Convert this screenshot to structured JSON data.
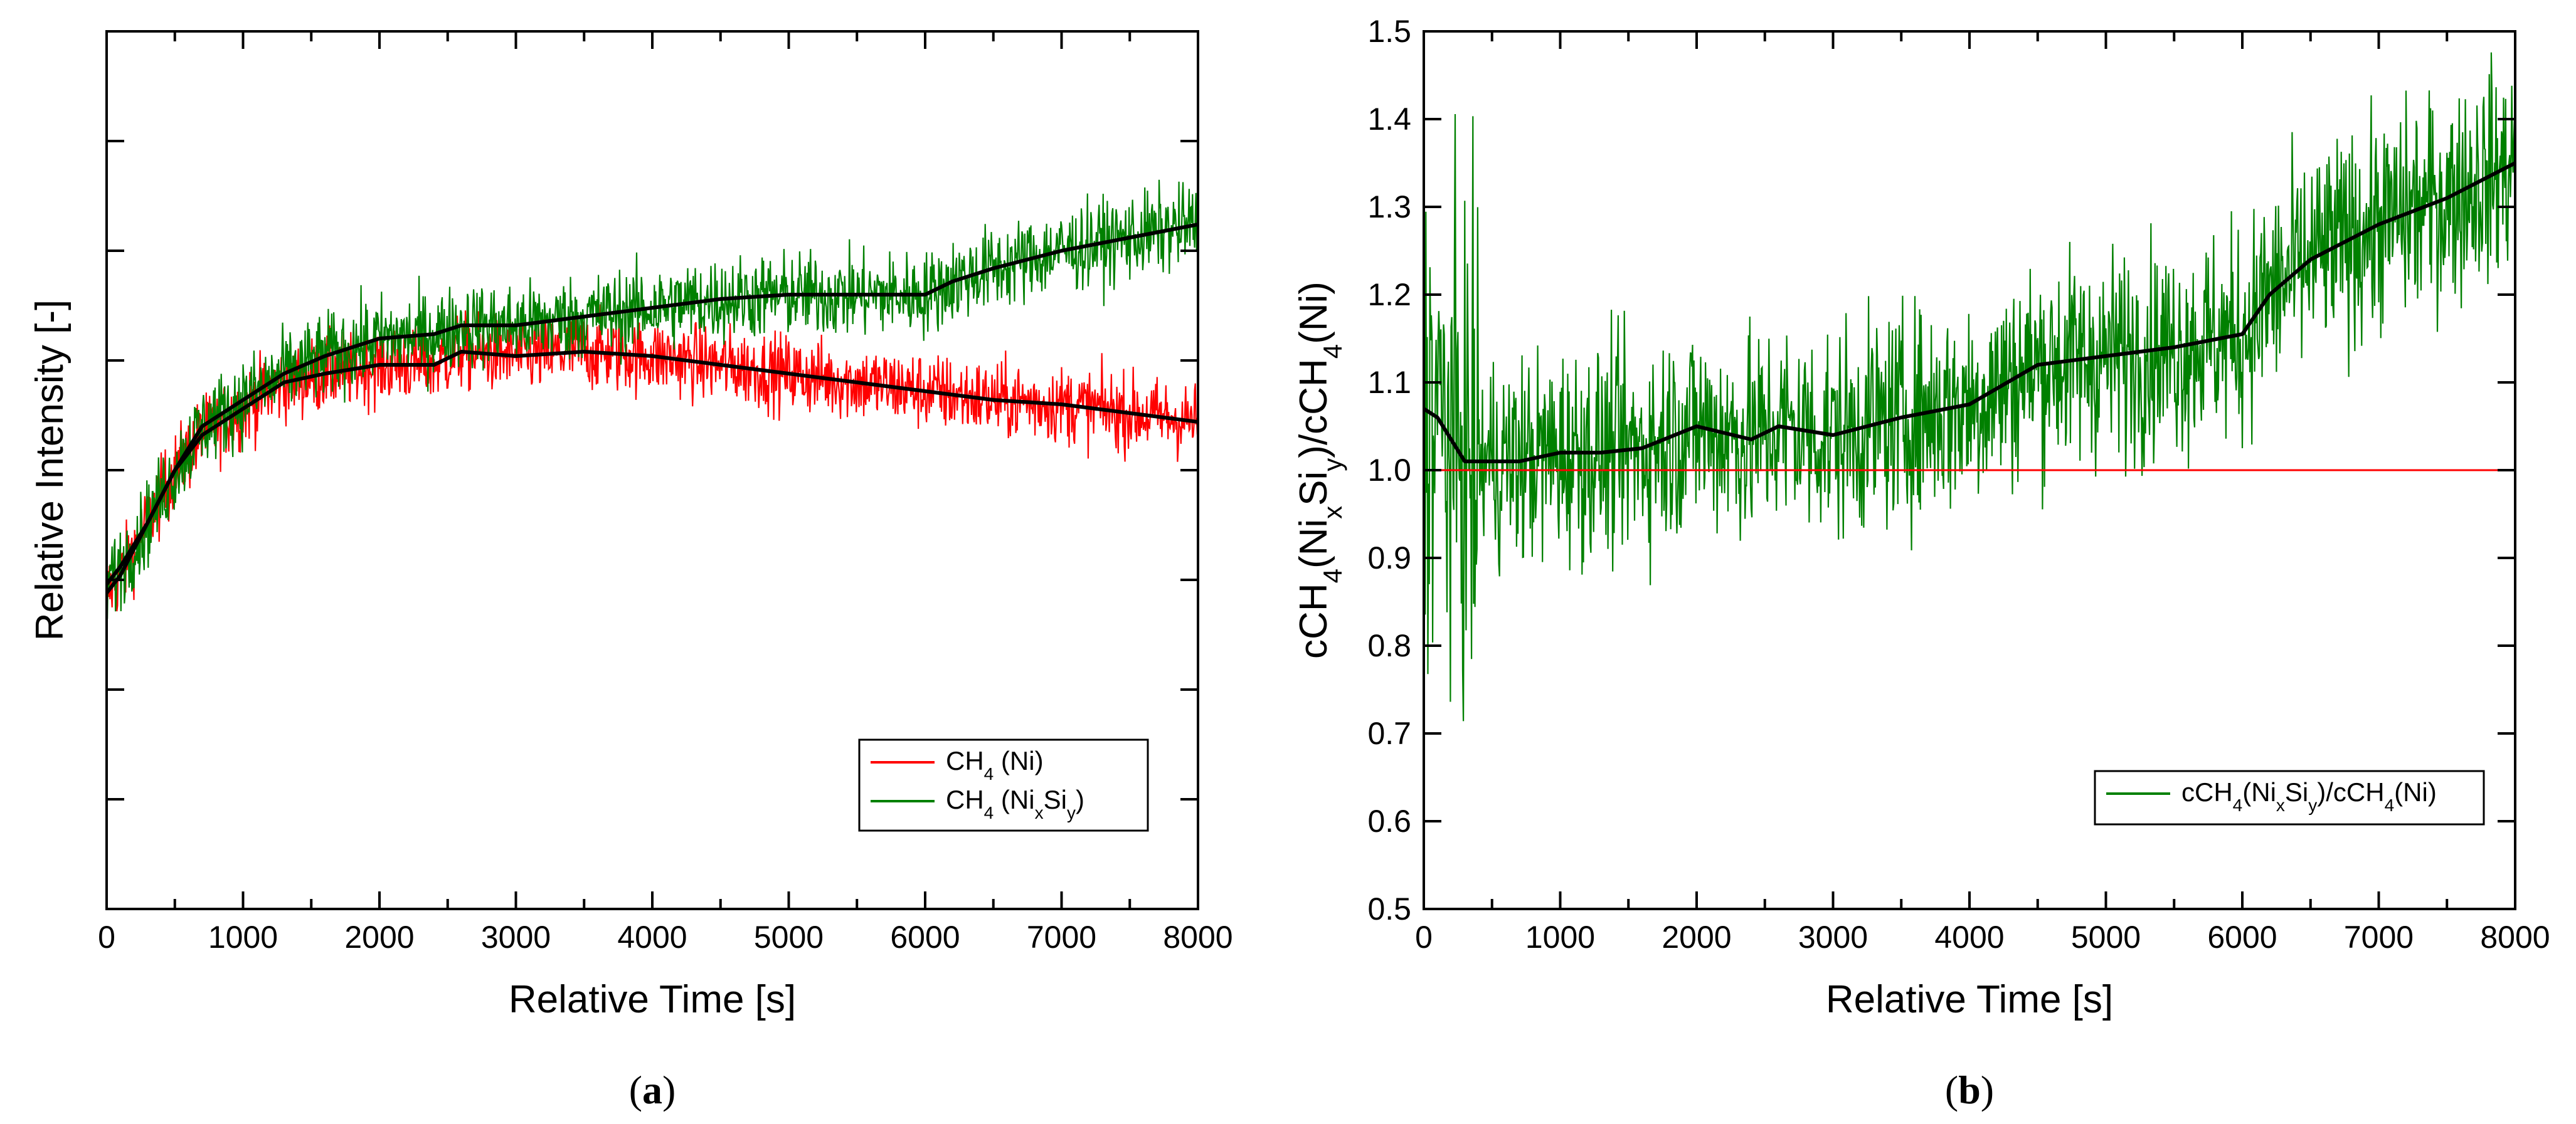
{
  "chart_data": [
    {
      "type": "line",
      "panel_label": "a",
      "xlabel": "Relative Time [s]",
      "ylabel": "Relative Intensity [-]",
      "xlim": [
        0,
        8000
      ],
      "ylim": [
        0,
        1
      ],
      "x_ticks": [
        "0",
        "1000",
        "2000",
        "3000",
        "4000",
        "5000",
        "6000",
        "7000",
        "8000"
      ],
      "y_tick_count": 8,
      "y_tick_labels_shown": false,
      "grid": false,
      "legend_position": "bottom-right",
      "series": [
        {
          "name": "CH4 (Ni)",
          "legend_parts": [
            "CH",
            "4",
            " (Ni)"
          ],
          "color": "#ff0000",
          "noise": 0.022,
          "x": [
            0,
            100,
            300,
            500,
            700,
            1000,
            1300,
            1600,
            2000,
            2400,
            2600,
            3000,
            3500,
            4000,
            4500,
            5000,
            5500,
            6000,
            6500,
            7000,
            7500,
            8000
          ],
          "y": [
            0.36,
            0.38,
            0.44,
            0.5,
            0.54,
            0.57,
            0.6,
            0.61,
            0.62,
            0.62,
            0.635,
            0.63,
            0.635,
            0.63,
            0.62,
            0.61,
            0.6,
            0.59,
            0.58,
            0.575,
            0.565,
            0.555
          ]
        },
        {
          "name": "CH4 (NixSiy)",
          "legend_parts": [
            "CH",
            "4",
            " (Ni",
            "x",
            "Si",
            "y",
            ")"
          ],
          "color": "#008000",
          "noise": 0.024,
          "x": [
            0,
            100,
            300,
            500,
            700,
            1000,
            1300,
            1600,
            2000,
            2400,
            2600,
            3000,
            3500,
            4000,
            4500,
            5000,
            5500,
            6000,
            6200,
            6500,
            7000,
            7500,
            8000
          ],
          "y": [
            0.37,
            0.39,
            0.44,
            0.5,
            0.55,
            0.58,
            0.61,
            0.63,
            0.65,
            0.655,
            0.665,
            0.665,
            0.675,
            0.685,
            0.695,
            0.7,
            0.7,
            0.7,
            0.715,
            0.73,
            0.75,
            0.765,
            0.78
          ]
        }
      ]
    },
    {
      "type": "line",
      "panel_label": "b",
      "xlabel": "Relative Time [s]",
      "ylabel": "cCH4(NixSiy)/cCH4(Ni)",
      "ylabel_parts": [
        "cCH",
        "4",
        "(Ni",
        "x",
        "Si",
        "y",
        ")/cCH",
        "4",
        "(Ni)"
      ],
      "xlim": [
        0,
        8000
      ],
      "ylim": [
        0.5,
        1.5
      ],
      "x_ticks": [
        "0",
        "1000",
        "2000",
        "3000",
        "4000",
        "5000",
        "6000",
        "7000",
        "8000"
      ],
      "y_ticks": [
        "0.5",
        "0.6",
        "0.7",
        "0.8",
        "0.9",
        "1.0",
        "1.1",
        "1.2",
        "1.3",
        "1.4",
        "1.5"
      ],
      "grid": false,
      "legend_position": "bottom-right",
      "reference_line": {
        "y": 1.0,
        "color": "#ff0000"
      },
      "series": [
        {
          "name": "cCH4(NixSiy)/cCH4(Ni)",
          "legend_parts": [
            "cCH",
            "4",
            "(Ni",
            "x",
            "Si",
            "y",
            ")/cCH",
            "4",
            "(Ni)"
          ],
          "color": "#008000",
          "noise": 0.06,
          "x": [
            0,
            100,
            300,
            500,
            700,
            1000,
            1300,
            1600,
            2000,
            2400,
            2600,
            3000,
            3500,
            4000,
            4500,
            5000,
            5500,
            6000,
            6200,
            6500,
            7000,
            7500,
            8000
          ],
          "y": [
            1.07,
            1.06,
            1.01,
            1.01,
            1.01,
            1.02,
            1.02,
            1.025,
            1.05,
            1.035,
            1.05,
            1.04,
            1.06,
            1.075,
            1.12,
            1.13,
            1.14,
            1.155,
            1.2,
            1.24,
            1.28,
            1.31,
            1.35
          ]
        }
      ]
    }
  ]
}
